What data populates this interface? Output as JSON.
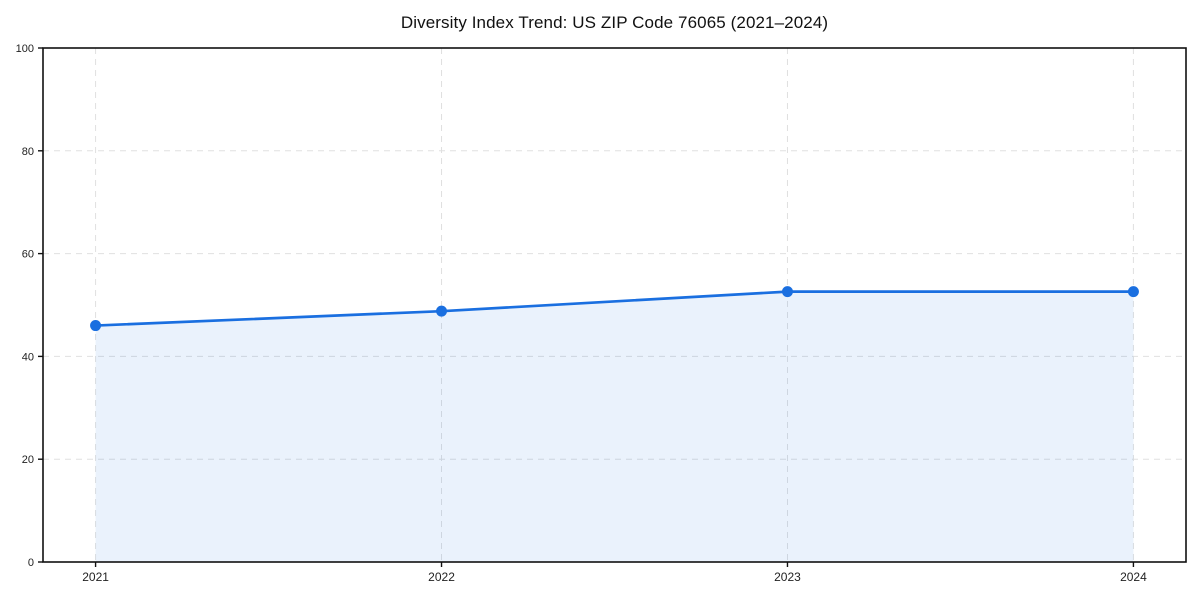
{
  "chart_data": {
    "type": "line",
    "title": "Diversity Index Trend: US ZIP Code 76065 (2021–2024)",
    "x": [
      2021,
      2022,
      2023,
      2024
    ],
    "x_tick_labels": [
      "2021",
      "2022",
      "2023",
      "2024"
    ],
    "series": [
      {
        "name": "Diversity Index",
        "values": [
          46.0,
          48.8,
          52.6,
          52.6
        ]
      }
    ],
    "xlabel": "",
    "ylabel": "",
    "ylim": [
      0,
      100
    ],
    "yticks": [
      0,
      20,
      40,
      60,
      80,
      100
    ],
    "ytick_labels": [
      "0",
      "20",
      "40",
      "60",
      "80",
      "100"
    ],
    "grid": "dashed-both-axes",
    "legend_position": "none",
    "area_fill": true,
    "markers": "circle",
    "colors": {
      "line": "#1a6fe0",
      "marker": "#1a6fe0",
      "area": "rgba(26,111,224,0.09)",
      "grid": "#e0e0e0",
      "spine": "#111111",
      "tick": "#111111",
      "tick_label": "#222222",
      "title": "#111111",
      "background": "#ffffff"
    }
  }
}
